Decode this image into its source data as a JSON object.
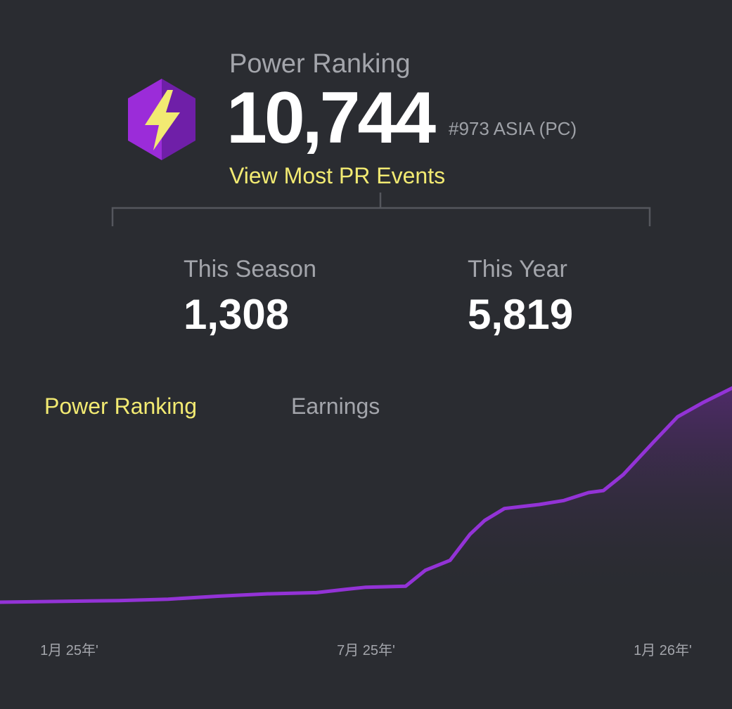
{
  "header": {
    "title": "Power Ranking",
    "value": "10,744",
    "rank": "#973 ASIA (PC)",
    "link_label": "View Most PR Events",
    "icon": "lightning-bolt-hexagon-icon",
    "icon_colors": {
      "hex_light": "#9b2cd9",
      "hex_dark": "#6f1fa8",
      "bolt": "#f2ea72"
    }
  },
  "stats": {
    "season_label": "This Season",
    "season_value": "1,308",
    "year_label": "This Year",
    "year_value": "5,819"
  },
  "tabs": [
    {
      "label": "Power Ranking",
      "active": true
    },
    {
      "label": "Earnings",
      "active": false
    }
  ],
  "colors": {
    "accent": "#f2ea72",
    "line": "#9333d6",
    "background": "#2a2c31",
    "muted_text": "#a3a5ab"
  },
  "chart_data": {
    "type": "area",
    "title": "",
    "xlabel": "",
    "ylabel": "",
    "grid": false,
    "x_ticks": [
      {
        "label": "1月 25年'",
        "x": 0
      },
      {
        "label": "7月 25年'",
        "x": 6
      },
      {
        "label": "1月 26年'",
        "x": 12
      }
    ],
    "xlim": [
      -1.4,
      13.4
    ],
    "ylim": [
      0,
      11000
    ],
    "series": [
      {
        "x": [
          -1.4,
          1.0,
          2.0,
          3.0,
          4.0,
          5.0,
          5.6,
          6.0,
          6.8,
          7.2,
          7.7,
          8.1,
          8.4,
          8.8,
          9.5,
          10.0,
          10.5,
          10.8,
          11.2,
          11.8,
          12.3,
          12.8,
          13.4
        ],
        "y": [
          0,
          80,
          150,
          300,
          420,
          480,
          650,
          750,
          800,
          1600,
          2100,
          3400,
          4100,
          4700,
          4900,
          5100,
          5500,
          5600,
          6400,
          8000,
          9300,
          10000,
          10744
        ]
      }
    ]
  }
}
